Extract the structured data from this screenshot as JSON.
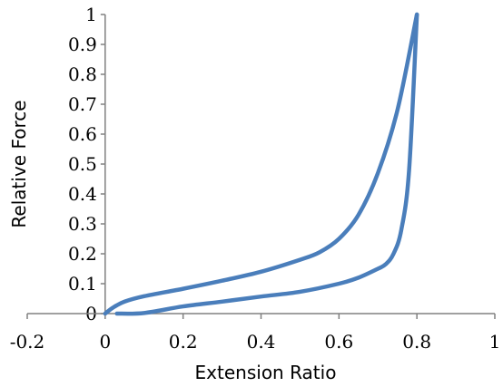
{
  "chart_data": {
    "type": "line",
    "title": "",
    "xlabel": "Extension Ratio",
    "ylabel": "Relative Force",
    "xlim": [
      -0.2,
      1
    ],
    "ylim": [
      0,
      1
    ],
    "x_ticks": [
      "-0.2",
      "0",
      "0.2",
      "0.4",
      "0.6",
      "0.8",
      "1"
    ],
    "y_ticks": [
      "0",
      "0.1",
      "0.2",
      "0.3",
      "0.4",
      "0.5",
      "0.6",
      "0.7",
      "0.8",
      "0.9",
      "1"
    ],
    "grid": false,
    "legend": "none",
    "series": [
      {
        "color": "#4a7ebb",
        "x": [
          0.03,
          0.1,
          0.2,
          0.3,
          0.4,
          0.5,
          0.6,
          0.65,
          0.7,
          0.72,
          0.74,
          0.76,
          0.78,
          0.8
        ],
        "y": [
          0.0,
          0.002,
          0.024,
          0.04,
          0.057,
          0.073,
          0.1,
          0.12,
          0.15,
          0.165,
          0.2,
          0.28,
          0.48,
          1.0
        ]
      },
      {
        "color": "#4a7ebb",
        "x": [
          0.0,
          0.02,
          0.05,
          0.1,
          0.2,
          0.3,
          0.4,
          0.5,
          0.55,
          0.6,
          0.65,
          0.7,
          0.75,
          0.8
        ],
        "y": [
          0.0,
          0.02,
          0.04,
          0.058,
          0.083,
          0.11,
          0.14,
          0.18,
          0.205,
          0.25,
          0.33,
          0.47,
          0.68,
          1.0
        ]
      }
    ]
  }
}
